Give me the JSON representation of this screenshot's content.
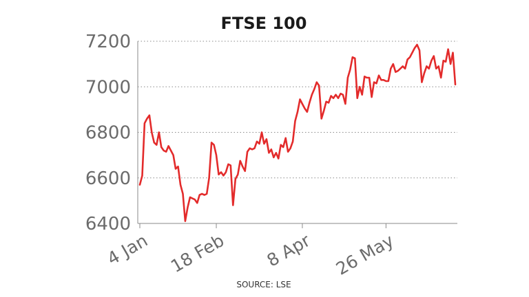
{
  "colors": {
    "line": "#e32b2b",
    "text": "#6b6b6b",
    "title": "#1a1a1a",
    "grid": "#8a8a8a"
  },
  "chart_data": {
    "type": "line",
    "title": "FTSE 100",
    "source": "SOURCE: LSE",
    "xlabel": "",
    "ylabel": "",
    "ylim": [
      6400,
      7200
    ],
    "yticks": [
      6400,
      6600,
      6800,
      7000,
      7200
    ],
    "grid": true,
    "x_ticks": [
      {
        "label": "4 Jan",
        "index": 0
      },
      {
        "label": "18 Feb",
        "index": 32
      },
      {
        "label": "8 Apr",
        "index": 68
      },
      {
        "label": "26 May",
        "index": 103
      }
    ],
    "series": [
      {
        "values": [
          6570,
          6610,
          6840,
          6860,
          6875,
          6800,
          6755,
          6745,
          6800,
          6735,
          6720,
          6715,
          6740,
          6720,
          6700,
          6640,
          6650,
          6570,
          6530,
          6410,
          6470,
          6515,
          6510,
          6505,
          6490,
          6525,
          6530,
          6525,
          6530,
          6600,
          6755,
          6745,
          6700,
          6615,
          6625,
          6610,
          6625,
          6660,
          6655,
          6480,
          6595,
          6615,
          6675,
          6650,
          6630,
          6715,
          6730,
          6725,
          6730,
          6760,
          6750,
          6800,
          6750,
          6770,
          6710,
          6725,
          6690,
          6710,
          6685,
          6745,
          6735,
          6775,
          6715,
          6730,
          6760,
          6850,
          6890,
          6945,
          6925,
          6905,
          6890,
          6930,
          6965,
          6990,
          7020,
          7005,
          6860,
          6895,
          6935,
          6930,
          6960,
          6950,
          6965,
          6950,
          6970,
          6965,
          6925,
          7040,
          7075,
          7130,
          7125,
          6950,
          7000,
          6965,
          7045,
          7040,
          7040,
          6955,
          7020,
          7015,
          7050,
          7030,
          7030,
          7025,
          7025,
          7080,
          7100,
          7065,
          7070,
          7080,
          7090,
          7080,
          7120,
          7130,
          7150,
          7170,
          7185,
          7160,
          7020,
          7060,
          7090,
          7080,
          7115,
          7135,
          7080,
          7090,
          7040,
          7115,
          7110,
          7165,
          7100,
          7150,
          7010
        ]
      }
    ]
  }
}
